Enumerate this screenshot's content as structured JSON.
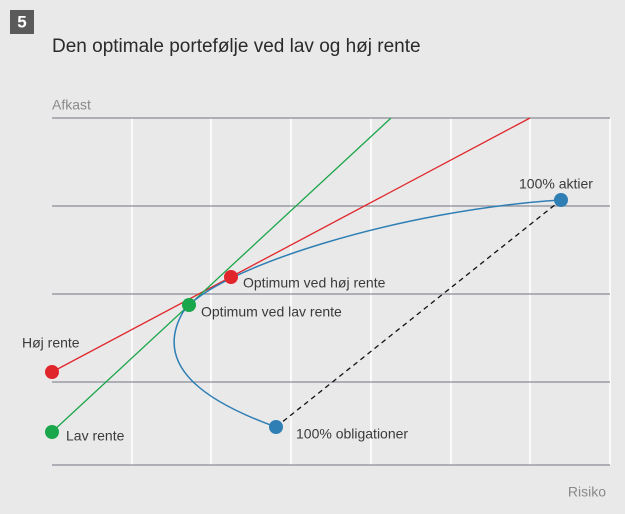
{
  "figure_number": "5",
  "title": "Den optimale portefølje ved lav og høj rente",
  "axes": {
    "y_label": "Afkast",
    "x_label": "Risiko"
  },
  "points": {
    "stocks": "100% aktier",
    "optimum_high": "Optimum ved høj rente",
    "optimum_low": "Optimum ved lav rente",
    "high_rate": "Høj rente",
    "low_rate": "Lav rente",
    "bonds": "100% obligationer"
  }
}
